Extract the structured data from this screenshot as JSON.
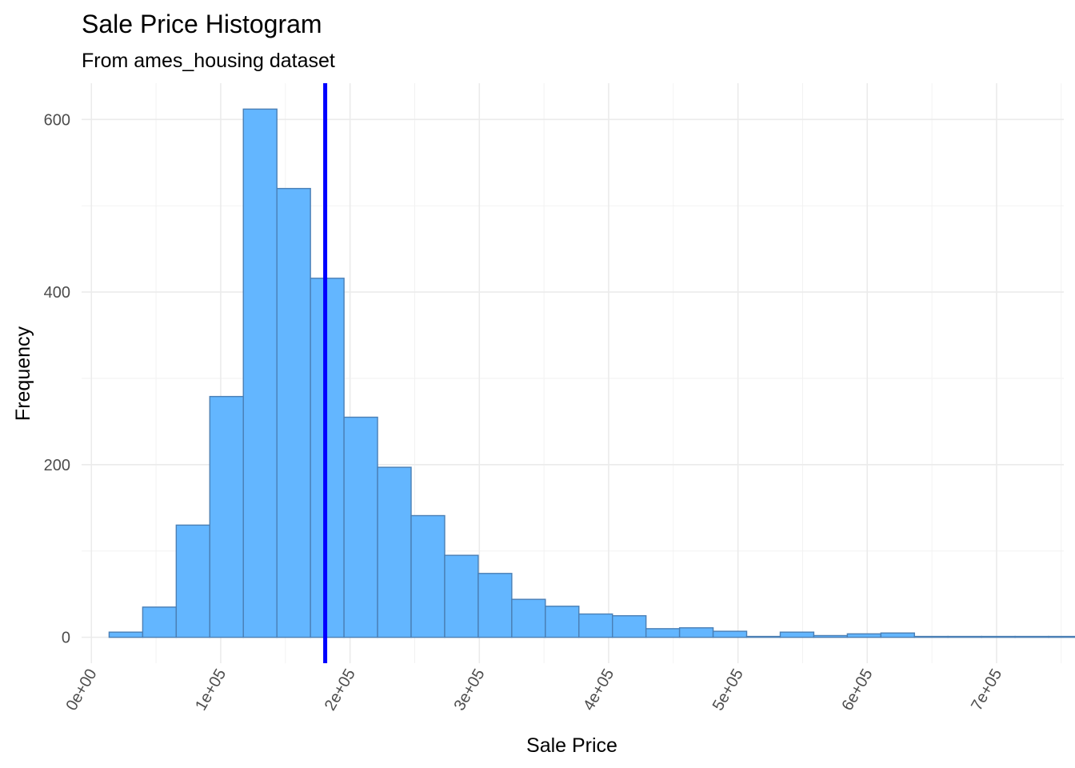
{
  "chart_data": {
    "type": "bar",
    "title": "Sale Price Histogram",
    "subtitle": "From ames_housing dataset",
    "xlabel": "Sale Price",
    "ylabel": "Frequency",
    "xlim": [
      -7600,
      752000
    ],
    "ylim": [
      -30,
      642
    ],
    "x_ticks": [
      {
        "value": 0,
        "label": "0e+00"
      },
      {
        "value": 100000,
        "label": "1e+05"
      },
      {
        "value": 200000,
        "label": "2e+05"
      },
      {
        "value": 300000,
        "label": "3e+05"
      },
      {
        "value": 400000,
        "label": "4e+05"
      },
      {
        "value": 500000,
        "label": "5e+05"
      },
      {
        "value": 600000,
        "label": "6e+05"
      },
      {
        "value": 700000,
        "label": "7e+05"
      }
    ],
    "y_ticks": [
      {
        "value": 0,
        "label": "0"
      },
      {
        "value": 200,
        "label": "200"
      },
      {
        "value": 400,
        "label": "400"
      },
      {
        "value": 600,
        "label": "600"
      }
    ],
    "bin_width": 25950,
    "bin_start": 13700,
    "values": [
      6,
      35,
      130,
      279,
      612,
      520,
      416,
      255,
      197,
      141,
      95,
      74,
      44,
      36,
      27,
      25,
      10,
      11,
      7,
      1,
      6,
      2,
      4,
      5,
      1,
      1,
      1,
      1,
      1,
      1
    ],
    "mean_line": 180800,
    "colors": {
      "bar_fill": "#63b6ff",
      "bar_stroke": "#4a7fb5",
      "mean_line": "#0000ff"
    },
    "grid": true,
    "legend": "none"
  }
}
